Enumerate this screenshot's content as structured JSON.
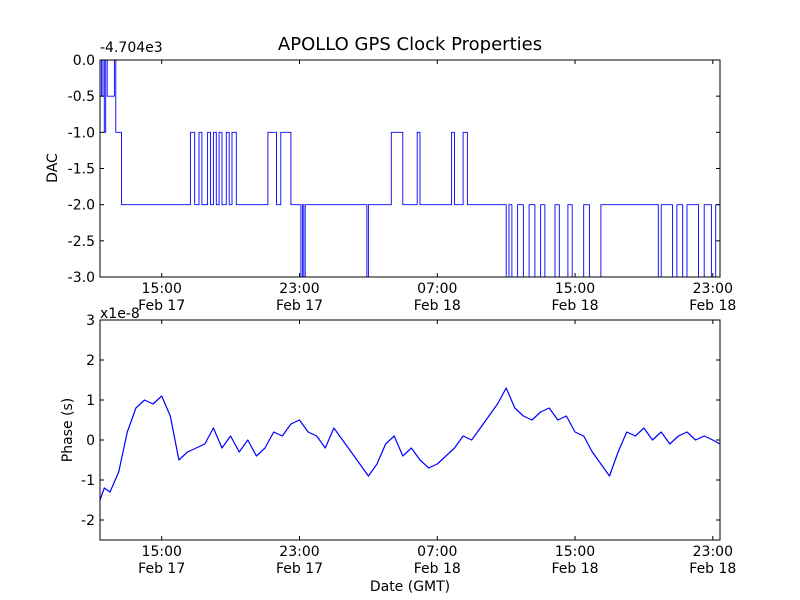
{
  "title": "APOLLO GPS Clock Properties",
  "colors": {
    "series": "#0000ff",
    "axes": "#000000",
    "background": "#ffffff"
  },
  "chart_data": [
    {
      "type": "line",
      "ylabel": "DAC",
      "y_offset_text": "-4.704e3",
      "ylim": [
        -3.0,
        0.0
      ],
      "y_ticks": [
        0.0,
        -0.5,
        -1.0,
        -1.5,
        -2.0,
        -2.5,
        -3.0
      ],
      "y_tick_labels": [
        "0.0",
        "-0.5",
        "-1.0",
        "-1.5",
        "-2.0",
        "-2.5",
        "-3.0"
      ],
      "x_ticks": [
        "Feb 17 15:00",
        "Feb 17 23:00",
        "Feb 18 07:00",
        "Feb 18 15:00",
        "Feb 18 23:00"
      ],
      "x_tick_labels": [
        {
          "time": "15:00",
          "date": "Feb 17"
        },
        {
          "time": "23:00",
          "date": "Feb 17"
        },
        {
          "time": "07:00",
          "date": "Feb 18"
        },
        {
          "time": "15:00",
          "date": "Feb 18"
        },
        {
          "time": "23:00",
          "date": "Feb 18"
        }
      ],
      "xlim": [
        "Feb 17 11:25",
        "Feb 18 23:25"
      ],
      "x": [
        "Feb 17 11:25",
        "Feb 17 11:30",
        "Feb 17 11:35",
        "Feb 17 11:40",
        "Feb 17 11:45",
        "Feb 17 11:50",
        "Feb 17 12:15",
        "Feb 17 12:20",
        "Feb 17 12:40",
        "Feb 17 13:30",
        "Feb 17 16:40",
        "Feb 17 16:55",
        "Feb 17 17:10",
        "Feb 17 17:20",
        "Feb 17 17:40",
        "Feb 17 17:50",
        "Feb 17 18:00",
        "Feb 17 18:10",
        "Feb 17 18:20",
        "Feb 17 18:30",
        "Feb 17 18:45",
        "Feb 17 18:55",
        "Feb 17 19:05",
        "Feb 17 19:20",
        "Feb 17 19:35",
        "Feb 17 21:10",
        "Feb 17 21:40",
        "Feb 17 21:55",
        "Feb 17 22:30",
        "Feb 17 23:05",
        "Feb 17 23:10",
        "Feb 17 23:15",
        "Feb 17 23:20",
        "Feb 18 02:55",
        "Feb 18 03:00",
        "Feb 18 03:50",
        "Feb 18 04:20",
        "Feb 18 05:00",
        "Feb 18 05:50",
        "Feb 18 06:00",
        "Feb 18 07:50",
        "Feb 18 08:00",
        "Feb 18 08:30",
        "Feb 18 08:45",
        "Feb 18 10:40",
        "Feb 18 11:00",
        "Feb 18 11:10",
        "Feb 18 11:20",
        "Feb 18 11:40",
        "Feb 18 12:00",
        "Feb 18 12:20",
        "Feb 18 12:40",
        "Feb 18 13:00",
        "Feb 18 13:15",
        "Feb 18 13:50",
        "Feb 18 14:05",
        "Feb 18 14:35",
        "Feb 18 14:50",
        "Feb 18 15:30",
        "Feb 18 15:50",
        "Feb 18 16:30",
        "Feb 18 16:45",
        "Feb 18 19:50",
        "Feb 18 20:00",
        "Feb 18 20:40",
        "Feb 18 20:55",
        "Feb 18 21:15",
        "Feb 18 21:30",
        "Feb 18 22:10",
        "Feb 18 22:30",
        "Feb 18 22:55",
        "Feb 18 23:10"
      ],
      "values": [
        0,
        -0.5,
        0,
        -1.0,
        0,
        -0.5,
        0,
        -1.0,
        -2.0,
        -2.0,
        -1.0,
        -2.0,
        -1.0,
        -2.0,
        -1.0,
        -2.0,
        -1.0,
        -2.0,
        -1.0,
        -2.0,
        -1.0,
        -2.0,
        -1.0,
        -2.0,
        -2.0,
        -1.0,
        -2.0,
        -1.0,
        -2.0,
        -3.0,
        -2.0,
        -3.0,
        -2.0,
        -3.0,
        -2.0,
        -2.0,
        -1.0,
        -2.0,
        -1.0,
        -2.0,
        -1.0,
        -2.0,
        -1.0,
        -2.0,
        -2.0,
        -3.0,
        -2.0,
        -3.0,
        -2.0,
        -3.0,
        -2.0,
        -3.0,
        -2.0,
        -3.0,
        -2.0,
        -3.0,
        -2.0,
        -3.0,
        -2.0,
        -3.0,
        -2.0,
        -2.0,
        -3.0,
        -2.0,
        -3.0,
        -2.0,
        -3.0,
        -2.0,
        -3.0,
        -2.0,
        -3.0,
        -2.0
      ]
    },
    {
      "type": "line",
      "ylabel": "Phase (s)",
      "xlabel": "Date (GMT)",
      "y_offset_text": "x1e-8",
      "ylim": [
        -2.5,
        3.0
      ],
      "y_ticks": [
        -2,
        -1,
        0,
        1,
        2,
        3
      ],
      "y_tick_labels": [
        "-2",
        "-1",
        "0",
        "1",
        "2",
        "3"
      ],
      "x_ticks": [
        "Feb 17 15:00",
        "Feb 17 23:00",
        "Feb 18 07:00",
        "Feb 18 15:00",
        "Feb 18 23:00"
      ],
      "x_tick_labels": [
        {
          "time": "15:00",
          "date": "Feb 17"
        },
        {
          "time": "23:00",
          "date": "Feb 17"
        },
        {
          "time": "07:00",
          "date": "Feb 18"
        },
        {
          "time": "15:00",
          "date": "Feb 18"
        },
        {
          "time": "23:00",
          "date": "Feb 18"
        }
      ],
      "xlim": [
        "Feb 17 11:25",
        "Feb 18 23:25"
      ],
      "x": [
        "Feb 17 11:25",
        "Feb 17 11:40",
        "Feb 17 12:00",
        "Feb 17 12:30",
        "Feb 17 13:00",
        "Feb 17 13:30",
        "Feb 17 14:00",
        "Feb 17 14:30",
        "Feb 17 15:00",
        "Feb 17 15:30",
        "Feb 17 16:00",
        "Feb 17 16:30",
        "Feb 17 17:00",
        "Feb 17 17:30",
        "Feb 17 18:00",
        "Feb 17 18:30",
        "Feb 17 19:00",
        "Feb 17 19:30",
        "Feb 17 20:00",
        "Feb 17 20:30",
        "Feb 17 21:00",
        "Feb 17 21:30",
        "Feb 17 22:00",
        "Feb 17 22:30",
        "Feb 17 23:00",
        "Feb 17 23:30",
        "Feb 18 00:00",
        "Feb 18 00:30",
        "Feb 18 01:00",
        "Feb 18 01:30",
        "Feb 18 02:00",
        "Feb 18 02:30",
        "Feb 18 03:00",
        "Feb 18 03:30",
        "Feb 18 04:00",
        "Feb 18 04:30",
        "Feb 18 05:00",
        "Feb 18 05:30",
        "Feb 18 06:00",
        "Feb 18 06:30",
        "Feb 18 07:00",
        "Feb 18 07:30",
        "Feb 18 08:00",
        "Feb 18 08:30",
        "Feb 18 09:00",
        "Feb 18 09:30",
        "Feb 18 10:00",
        "Feb 18 10:30",
        "Feb 18 11:00",
        "Feb 18 11:30",
        "Feb 18 12:00",
        "Feb 18 12:30",
        "Feb 18 13:00",
        "Feb 18 13:30",
        "Feb 18 14:00",
        "Feb 18 14:30",
        "Feb 18 15:00",
        "Feb 18 15:30",
        "Feb 18 16:00",
        "Feb 18 16:30",
        "Feb 18 17:00",
        "Feb 18 17:30",
        "Feb 18 18:00",
        "Feb 18 18:30",
        "Feb 18 19:00",
        "Feb 18 19:30",
        "Feb 18 20:00",
        "Feb 18 20:30",
        "Feb 18 21:00",
        "Feb 18 21:30",
        "Feb 18 22:00",
        "Feb 18 22:30",
        "Feb 18 23:00",
        "Feb 18 23:25"
      ],
      "values": [
        -1.5,
        -1.2,
        -1.3,
        -0.8,
        0.2,
        0.8,
        1.0,
        0.9,
        1.1,
        0.6,
        -0.5,
        -0.3,
        -0.2,
        -0.1,
        0.3,
        -0.2,
        0.1,
        -0.3,
        0.0,
        -0.4,
        -0.2,
        0.2,
        0.1,
        0.4,
        0.5,
        0.2,
        0.1,
        -0.2,
        0.3,
        0.0,
        -0.3,
        -0.6,
        -0.9,
        -0.6,
        -0.1,
        0.1,
        -0.4,
        -0.2,
        -0.5,
        -0.7,
        -0.6,
        -0.4,
        -0.2,
        0.1,
        0.0,
        0.3,
        0.6,
        0.9,
        1.3,
        0.8,
        0.6,
        0.5,
        0.7,
        0.8,
        0.5,
        0.6,
        0.2,
        0.1,
        -0.3,
        -0.6,
        -0.9,
        -0.3,
        0.2,
        0.1,
        0.3,
        0.0,
        0.2,
        -0.1,
        0.1,
        0.2,
        0.0,
        0.1,
        0.0,
        -0.1
      ]
    }
  ]
}
